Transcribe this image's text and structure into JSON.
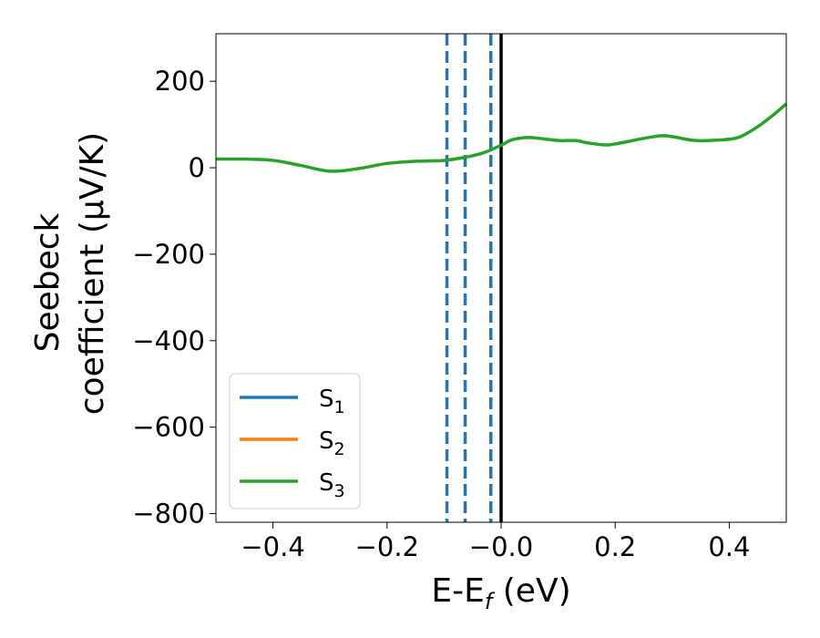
{
  "chart_data": {
    "type": "line",
    "xlabel": {
      "main": "E-E",
      "sub": "f",
      "unit": " (eV)"
    },
    "ylabel": {
      "line1": "Seebeck",
      "line2": "coefficient  (μV/K)"
    },
    "xlim": [
      -0.5,
      0.5
    ],
    "ylim": [
      -820,
      310
    ],
    "xticks": [
      -0.4,
      -0.2,
      0.0,
      0.2,
      0.4
    ],
    "xtick_labels": [
      "−0.4",
      "−0.2",
      "−0.0",
      "0.2",
      "0.4"
    ],
    "yticks": [
      200,
      0,
      -200,
      -400,
      -600,
      -800
    ],
    "ytick_labels": [
      "200",
      "0",
      "−200",
      "−400",
      "−600",
      "−800"
    ],
    "grid": false,
    "legend_position": "lower-left",
    "colors": {
      "S1": "#1f77b4",
      "S2": "#ff7f0e",
      "S3": "#2ca02c",
      "fermi": "#000000"
    },
    "series": [
      {
        "name": "S",
        "sub": "1",
        "color": "#1f77b4",
        "values": []
      },
      {
        "name": "S",
        "sub": "2",
        "color": "#ff7f0e",
        "values": []
      },
      {
        "name": "S",
        "sub": "3",
        "color": "#2ca02c",
        "x": [
          -0.5,
          -0.45,
          -0.4,
          -0.35,
          -0.3,
          -0.25,
          -0.2,
          -0.15,
          -0.1,
          -0.06,
          -0.03,
          0.0,
          0.02,
          0.05,
          0.1,
          0.13,
          0.15,
          0.18,
          0.2,
          0.25,
          0.28,
          0.3,
          0.34,
          0.38,
          0.4,
          0.42,
          0.45,
          0.48,
          0.5
        ],
        "y": [
          20,
          20,
          17,
          5,
          -8,
          -2,
          10,
          15,
          17,
          25,
          35,
          52,
          65,
          70,
          63,
          63,
          58,
          53,
          55,
          68,
          74,
          72,
          63,
          64,
          66,
          72,
          95,
          125,
          148
        ]
      }
    ],
    "vlines": [
      {
        "x": -0.095,
        "style": "dashed",
        "color": "#1f77b4"
      },
      {
        "x": -0.063,
        "style": "dashed",
        "color": "#1f77b4"
      },
      {
        "x": -0.018,
        "style": "dashed",
        "color": "#1f77b4"
      },
      {
        "x": 0.0,
        "style": "solid",
        "color": "#000000"
      }
    ]
  }
}
